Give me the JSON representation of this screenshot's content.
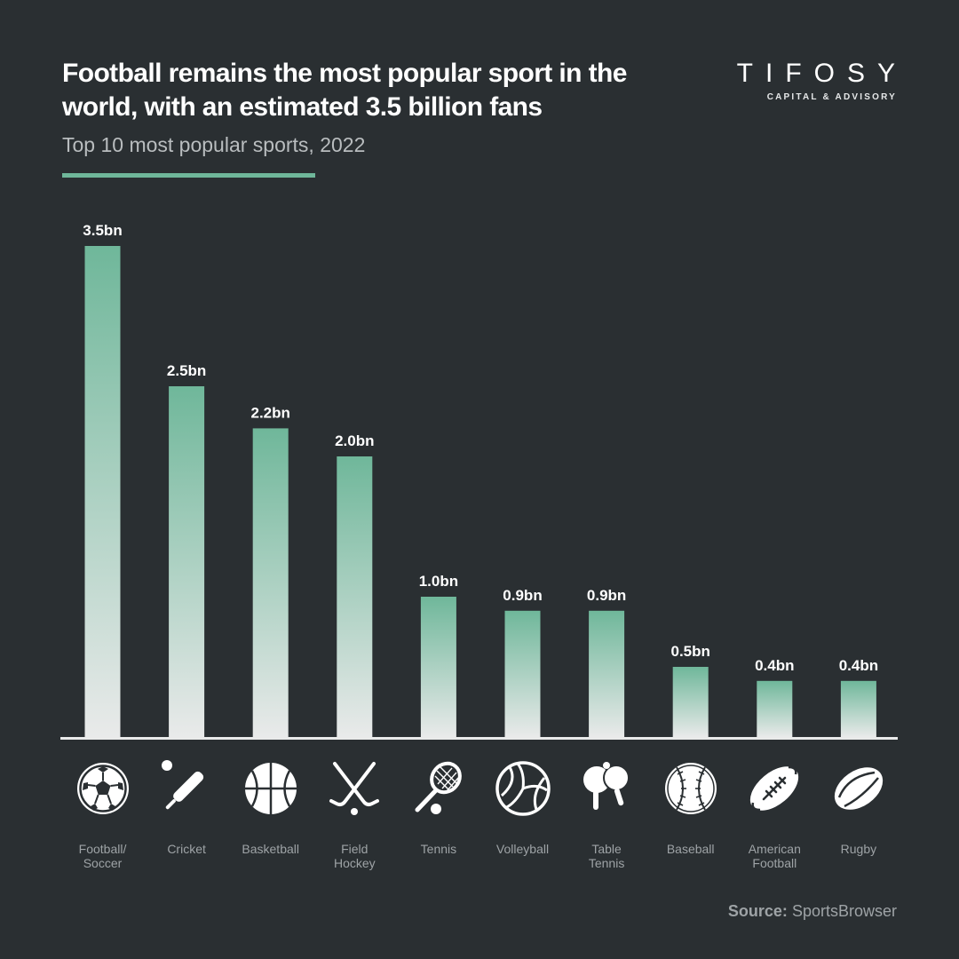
{
  "header": {
    "title": "Football remains the most popular sport in the world, with an estimated 3.5 billion fans",
    "subtitle": "Top 10 most popular sports, 2022"
  },
  "logo": {
    "name": "TIFOSY",
    "tagline": "CAPITAL & ADVISORY"
  },
  "source": {
    "label": "Source:",
    "value": "SportsBrowser"
  },
  "colors": {
    "background": "#2a2f32",
    "accent": "#6fb79a",
    "bar_top": "#6fb79a",
    "bar_bottom": "#e9eaea"
  },
  "chart_data": {
    "type": "bar",
    "categories": [
      "Football/ Soccer",
      "Cricket",
      "Basketball",
      "Field Hockey",
      "Tennis",
      "Volleyball",
      "Table Tennis",
      "Baseball",
      "American Football",
      "Rugby"
    ],
    "category_lines": [
      [
        "Football/",
        "Soccer"
      ],
      [
        "Cricket"
      ],
      [
        "Basketball"
      ],
      [
        "Field",
        "Hockey"
      ],
      [
        "Tennis"
      ],
      [
        "Volleyball"
      ],
      [
        "Table",
        "Tennis"
      ],
      [
        "Baseball"
      ],
      [
        "American",
        "Football"
      ],
      [
        "Rugby"
      ]
    ],
    "values": [
      3.5,
      2.5,
      2.2,
      2.0,
      1.0,
      0.9,
      0.9,
      0.5,
      0.4,
      0.4
    ],
    "data_labels": [
      "3.5bn",
      "2.5bn",
      "2.2bn",
      "2.0bn",
      "1.0bn",
      "0.9bn",
      "0.9bn",
      "0.5bn",
      "0.4bn",
      "0.4bn"
    ],
    "icons": [
      "soccer-ball-icon",
      "cricket-bat-icon",
      "basketball-icon",
      "hockey-sticks-icon",
      "tennis-racket-icon",
      "volleyball-icon",
      "table-tennis-paddles-icon",
      "baseball-icon",
      "american-football-icon",
      "rugby-ball-icon"
    ],
    "ylim": [
      0,
      3.5
    ],
    "grid": false,
    "legend": "none"
  }
}
